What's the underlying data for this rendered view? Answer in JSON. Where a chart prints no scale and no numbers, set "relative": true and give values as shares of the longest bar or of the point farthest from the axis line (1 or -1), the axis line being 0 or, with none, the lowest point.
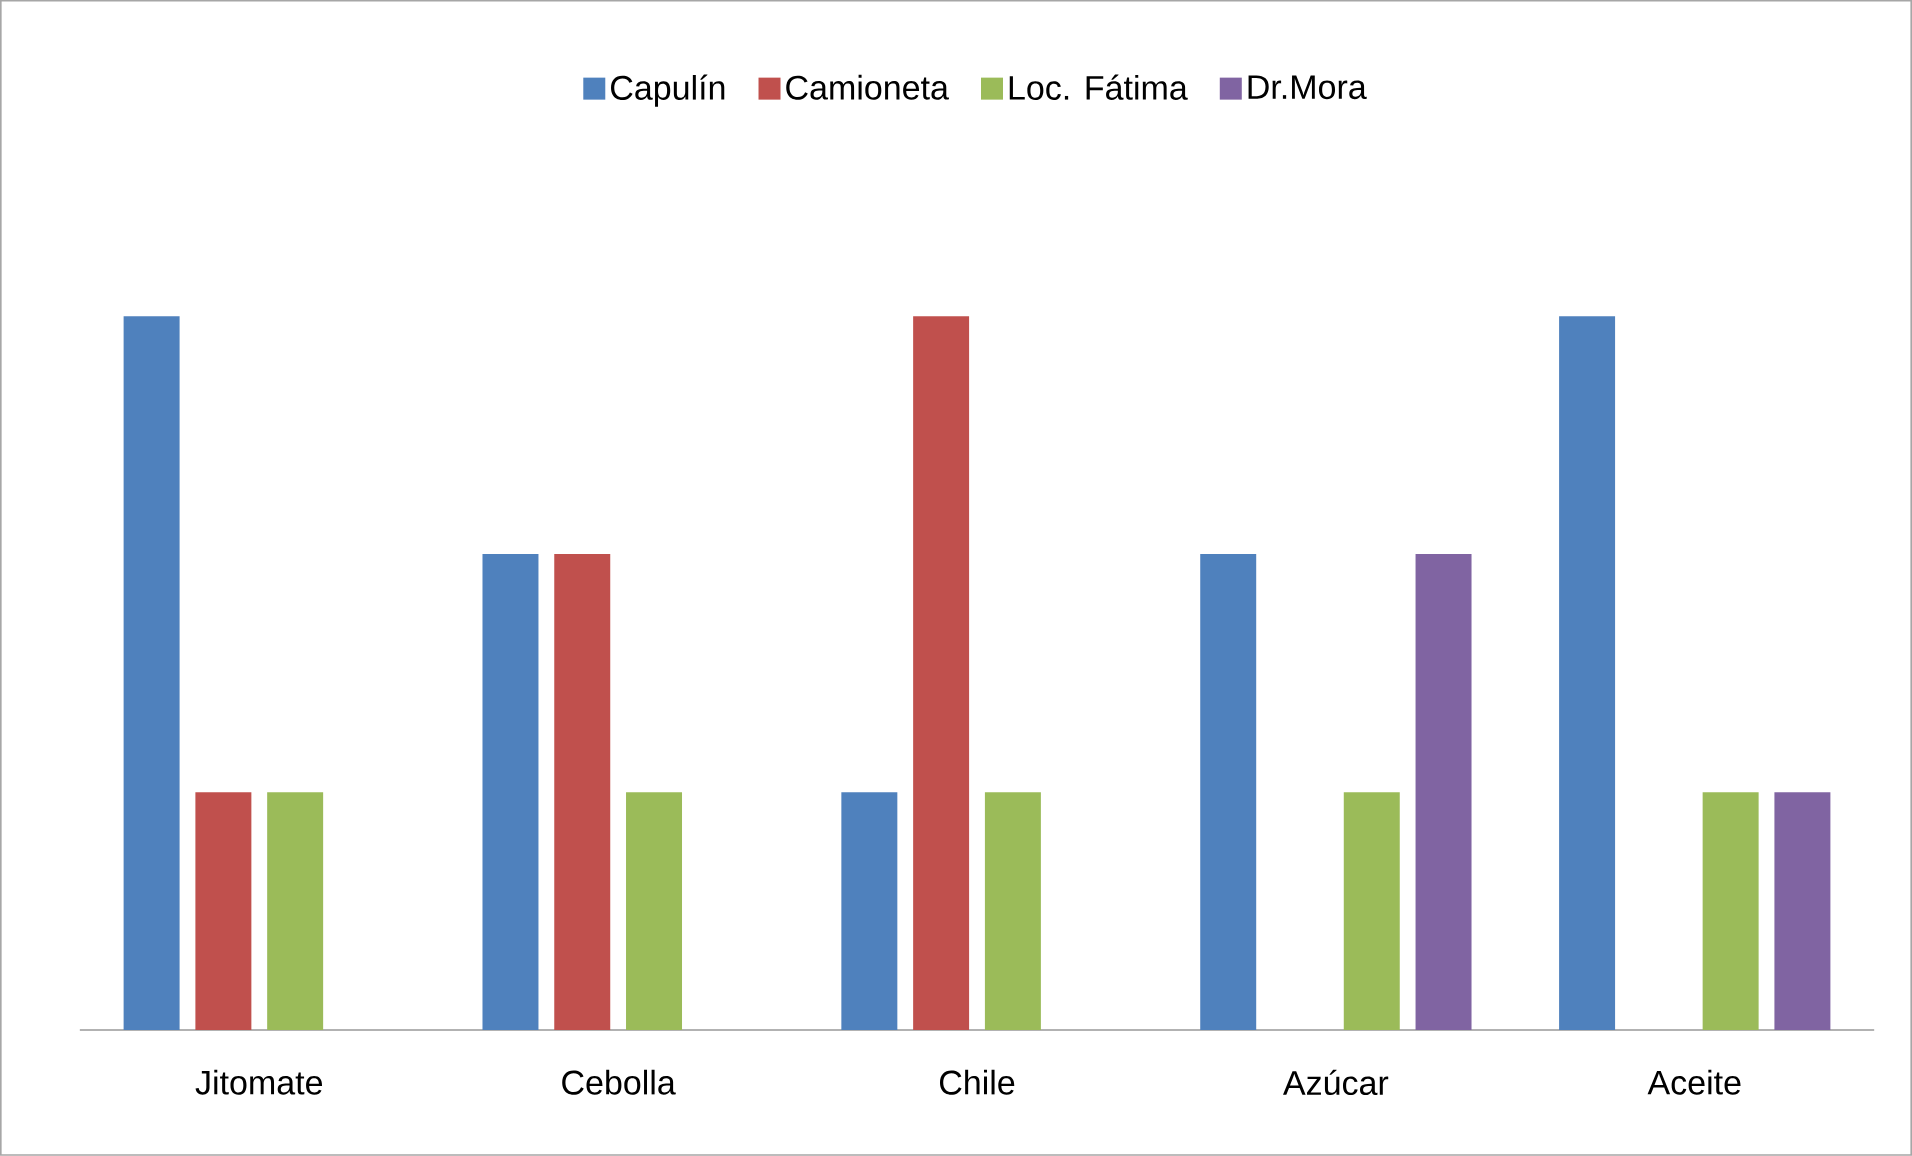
{
  "chart_data": {
    "type": "bar",
    "relative": true,
    "legend": "top",
    "categories": [
      "Jitomate",
      "Cebolla",
      "Chile",
      "Azúcar",
      "Aceite"
    ],
    "series": [
      {
        "name": "Capulín",
        "color": "#4f81bd",
        "values": [
          1,
          0.667,
          0.333,
          0.667,
          1
        ]
      },
      {
        "name": "Camioneta",
        "color": "#c0504d",
        "values": [
          0.333,
          0.667,
          1,
          null,
          null
        ]
      },
      {
        "name": "Loc. Fátima",
        "color": "#9bbb59",
        "values": [
          0.333,
          0.333,
          0.333,
          0.333,
          0.333
        ]
      },
      {
        "name": "Dr.Mora",
        "color": "#8064a2",
        "values": [
          null,
          null,
          null,
          0.667,
          0.333
        ]
      }
    ]
  }
}
